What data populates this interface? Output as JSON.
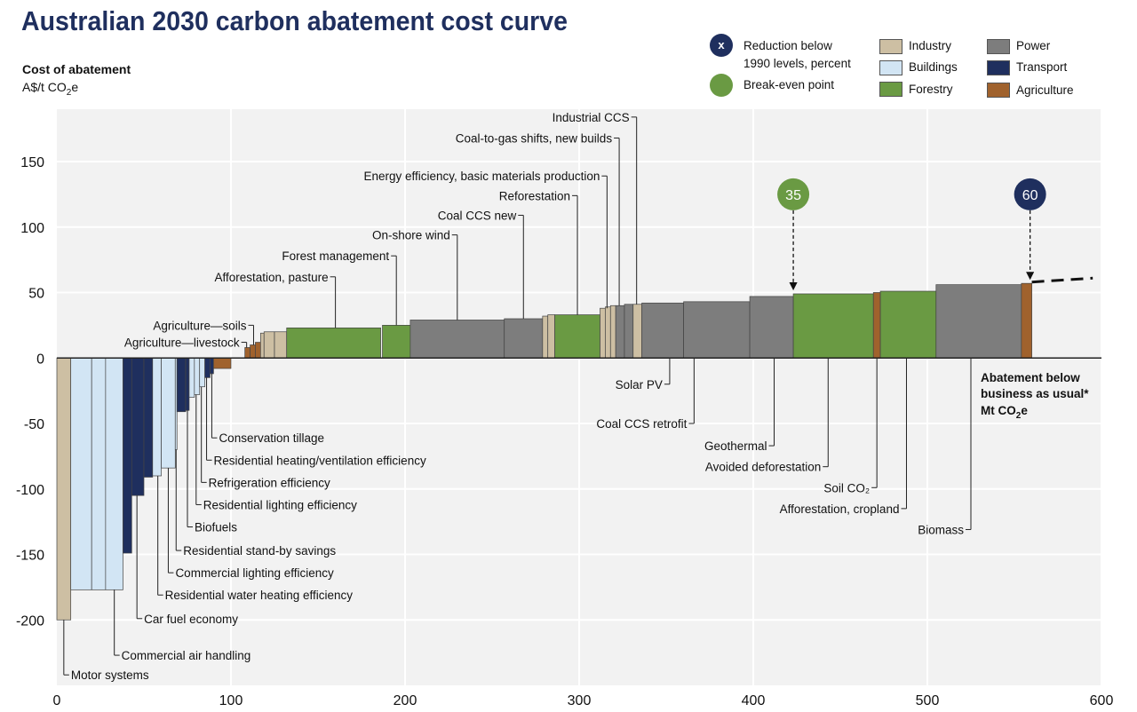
{
  "title": "Australian 2030 carbon abatement cost curve",
  "y_axis": {
    "label_line1": "Cost of abatement",
    "label_line2_prefix": "A$/t CO",
    "label_line2_sub": "2",
    "label_line2_suffix": "e"
  },
  "legend": {
    "reduction_marker": "x",
    "reduction_text_1": "Reduction below",
    "reduction_text_2": "1990 levels, percent",
    "breakeven_text": "Break-even point",
    "sectors": [
      {
        "key": "industry",
        "label": "Industry",
        "color": "#cdbfa3"
      },
      {
        "key": "buildings",
        "label": "Buildings",
        "color": "#d2e5f4"
      },
      {
        "key": "forestry",
        "label": "Forestry",
        "color": "#6a9a43"
      },
      {
        "key": "power",
        "label": "Power",
        "color": "#7d7d7d"
      },
      {
        "key": "transport",
        "label": "Transport",
        "color": "#1f2f5e"
      },
      {
        "key": "agriculture",
        "label": "Agriculture",
        "color": "#a0622d"
      }
    ]
  },
  "colors": {
    "background": "#f2f2f2",
    "grid": "#ffffff",
    "axis": "#222222",
    "reduction_marker": "#1f2f5e",
    "breakeven_marker": "#6a9a43"
  },
  "chart_data": {
    "type": "bar",
    "title": "Australian 2030 carbon abatement cost curve",
    "xlabel": "Abatement below business as usual* Mt CO2e",
    "ylabel": "Cost of abatement A$/t CO2e",
    "xlim": [
      0,
      600
    ],
    "ylim": [
      -250,
      190
    ],
    "xticks": [
      0,
      100,
      200,
      300,
      400,
      500,
      600
    ],
    "yticks": [
      -200,
      -150,
      -100,
      -50,
      0,
      50,
      100,
      150
    ],
    "x_axis_title_1": "Abatement below",
    "x_axis_title_2": "business as usual*",
    "x_axis_title_3_prefix": "Mt CO",
    "x_axis_title_3_sub": "2",
    "x_axis_title_3_suffix": "e",
    "bars": [
      {
        "sector": "industry",
        "x0": 0,
        "x1": 8,
        "y": -200
      },
      {
        "sector": "buildings",
        "x0": 8,
        "x1": 20,
        "y": -177
      },
      {
        "sector": "buildings",
        "x0": 20,
        "x1": 28,
        "y": -177
      },
      {
        "sector": "buildings",
        "x0": 28,
        "x1": 38,
        "y": -177
      },
      {
        "sector": "transport",
        "x0": 38,
        "x1": 43,
        "y": -149
      },
      {
        "sector": "transport",
        "x0": 43,
        "x1": 50,
        "y": -105
      },
      {
        "sector": "transport",
        "x0": 50,
        "x1": 55,
        "y": -91
      },
      {
        "sector": "buildings",
        "x0": 55,
        "x1": 60,
        "y": -90
      },
      {
        "sector": "buildings",
        "x0": 60,
        "x1": 68,
        "y": -84
      },
      {
        "sector": "buildings",
        "x0": 68,
        "x1": 69,
        "y": -70
      },
      {
        "sector": "transport",
        "x0": 69,
        "x1": 74,
        "y": -41
      },
      {
        "sector": "transport",
        "x0": 74,
        "x1": 76,
        "y": -40
      },
      {
        "sector": "buildings",
        "x0": 76,
        "x1": 79,
        "y": -30
      },
      {
        "sector": "buildings",
        "x0": 79,
        "x1": 82,
        "y": -28
      },
      {
        "sector": "buildings",
        "x0": 82,
        "x1": 85,
        "y": -22
      },
      {
        "sector": "transport",
        "x0": 85,
        "x1": 88,
        "y": -15
      },
      {
        "sector": "transport",
        "x0": 88,
        "x1": 90,
        "y": -12
      },
      {
        "sector": "agriculture",
        "x0": 90,
        "x1": 100,
        "y": -8
      },
      {
        "sector": "agriculture",
        "x0": 108,
        "x1": 111,
        "y": 8
      },
      {
        "sector": "agriculture",
        "x0": 111,
        "x1": 114,
        "y": 10
      },
      {
        "sector": "agriculture",
        "x0": 114,
        "x1": 117,
        "y": 12
      },
      {
        "sector": "industry",
        "x0": 117,
        "x1": 119,
        "y": 19
      },
      {
        "sector": "industry",
        "x0": 119,
        "x1": 125,
        "y": 20
      },
      {
        "sector": "industry",
        "x0": 125,
        "x1": 132,
        "y": 20
      },
      {
        "sector": "forestry",
        "x0": 132,
        "x1": 186,
        "y": 23
      },
      {
        "sector": "forestry",
        "x0": 187,
        "x1": 203,
        "y": 25
      },
      {
        "sector": "power",
        "x0": 203,
        "x1": 257,
        "y": 29
      },
      {
        "sector": "power",
        "x0": 257,
        "x1": 279,
        "y": 30
      },
      {
        "sector": "industry",
        "x0": 279,
        "x1": 282,
        "y": 32
      },
      {
        "sector": "industry",
        "x0": 282,
        "x1": 286,
        "y": 33
      },
      {
        "sector": "forestry",
        "x0": 286,
        "x1": 312,
        "y": 33
      },
      {
        "sector": "industry",
        "x0": 312,
        "x1": 315,
        "y": 38
      },
      {
        "sector": "industry",
        "x0": 315,
        "x1": 318,
        "y": 39
      },
      {
        "sector": "industry",
        "x0": 318,
        "x1": 321,
        "y": 40
      },
      {
        "sector": "power",
        "x0": 321,
        "x1": 326,
        "y": 40
      },
      {
        "sector": "power",
        "x0": 326,
        "x1": 331,
        "y": 41
      },
      {
        "sector": "industry",
        "x0": 331,
        "x1": 336,
        "y": 41
      },
      {
        "sector": "power",
        "x0": 336,
        "x1": 360,
        "y": 42
      },
      {
        "sector": "power",
        "x0": 360,
        "x1": 398,
        "y": 43
      },
      {
        "sector": "power",
        "x0": 398,
        "x1": 423,
        "y": 47
      },
      {
        "sector": "forestry",
        "x0": 423,
        "x1": 469,
        "y": 49
      },
      {
        "sector": "agriculture",
        "x0": 469,
        "x1": 473,
        "y": 50
      },
      {
        "sector": "forestry",
        "x0": 473,
        "x1": 505,
        "y": 51
      },
      {
        "sector": "power",
        "x0": 505,
        "x1": 554,
        "y": 56
      },
      {
        "sector": "agriculture",
        "x0": 554,
        "x1": 560,
        "y": 57
      }
    ],
    "extension": {
      "from": [
        560,
        58
      ],
      "to": [
        595,
        61
      ],
      "style": "dashed"
    },
    "markers": [
      {
        "kind": "breakeven",
        "label": "35",
        "x": 423,
        "y_circle": 125,
        "y_arrow": 52
      },
      {
        "kind": "reduction",
        "label": "60",
        "x": 559,
        "y_circle": 125,
        "y_arrow": 60
      }
    ],
    "annotations": [
      {
        "text": "Agriculture—soils",
        "x": 113,
        "y_text": 25,
        "side": "left",
        "y_bar": 10
      },
      {
        "text": "Agriculture—livestock",
        "x": 109,
        "y_text": 12,
        "side": "left",
        "y_bar": 8
      },
      {
        "text": "Afforestation, pasture",
        "x": 160,
        "y_text": 62,
        "side": "left",
        "y_bar": 23
      },
      {
        "text": "Forest management",
        "x": 195,
        "y_text": 78,
        "side": "left",
        "y_bar": 25
      },
      {
        "text": "On-shore wind",
        "x": 230,
        "y_text": 94,
        "side": "left",
        "y_bar": 29
      },
      {
        "text": "Coal CCS new",
        "x": 268,
        "y_text": 109,
        "side": "left",
        "y_bar": 30
      },
      {
        "text": "Reforestation",
        "x": 299,
        "y_text": 124,
        "side": "left",
        "y_bar": 33
      },
      {
        "text": "Energy efficiency, basic materials production",
        "x": 316,
        "y_text": 139,
        "side": "left",
        "y_bar": 38
      },
      {
        "text": "Coal-to-gas shifts, new builds",
        "x": 323,
        "y_text": 168,
        "side": "left",
        "y_bar": 40
      },
      {
        "text": "Industrial CCS",
        "x": 333,
        "y_text": 184,
        "side": "left",
        "y_bar": 41
      },
      {
        "text": "Conservation tillage",
        "x": 89,
        "y_text": -61,
        "side": "right",
        "y_bar": -12
      },
      {
        "text": "Residential heating/ventilation efficiency",
        "x": 86,
        "y_text": -78,
        "side": "right",
        "y_bar": -15
      },
      {
        "text": "Refrigeration efficiency",
        "x": 83,
        "y_text": -95,
        "side": "right",
        "y_bar": -22
      },
      {
        "text": "Residential lighting efficiency",
        "x": 80,
        "y_text": -112,
        "side": "right",
        "y_bar": -28
      },
      {
        "text": "Biofuels",
        "x": 75,
        "y_text": -129,
        "side": "right",
        "y_bar": -40
      },
      {
        "text": "Residential stand-by savings",
        "x": 68.5,
        "y_text": -147,
        "side": "right",
        "y_bar": -70
      },
      {
        "text": "Commercial lighting efficiency",
        "x": 64,
        "y_text": -164,
        "side": "right",
        "y_bar": -84
      },
      {
        "text": "Residential water heating efficiency",
        "x": 58,
        "y_text": -181,
        "side": "right",
        "y_bar": -90
      },
      {
        "text": "Car fuel economy",
        "x": 46,
        "y_text": -199,
        "side": "right",
        "y_bar": -105
      },
      {
        "text": "Commercial air handling",
        "x": 33,
        "y_text": -227,
        "side": "right",
        "y_bar": -177
      },
      {
        "text": "Motor systems",
        "x": 4,
        "y_text": -242,
        "side": "right",
        "y_bar": -200
      },
      {
        "text": "Solar PV",
        "x": 352,
        "y_text": -20,
        "side": "left",
        "y_bar": 0
      },
      {
        "text": "Coal CCS retrofit",
        "x": 366,
        "y_text": -50,
        "side": "left",
        "y_bar": 0
      },
      {
        "text": "Geothermal",
        "x": 412,
        "y_text": -67,
        "side": "left",
        "y_bar": 0
      },
      {
        "text": "Avoided deforestation",
        "x": 443,
        "y_text": -83,
        "side": "left",
        "y_bar": 0
      },
      {
        "text": "Soil CO₂",
        "x": 471,
        "y_text": -99,
        "side": "left",
        "y_bar": 0
      },
      {
        "text": "Afforestation, cropland",
        "x": 488,
        "y_text": -115,
        "side": "left",
        "y_bar": 0
      },
      {
        "text": "Biomass",
        "x": 525,
        "y_text": -131,
        "side": "left",
        "y_bar": 0
      }
    ]
  }
}
